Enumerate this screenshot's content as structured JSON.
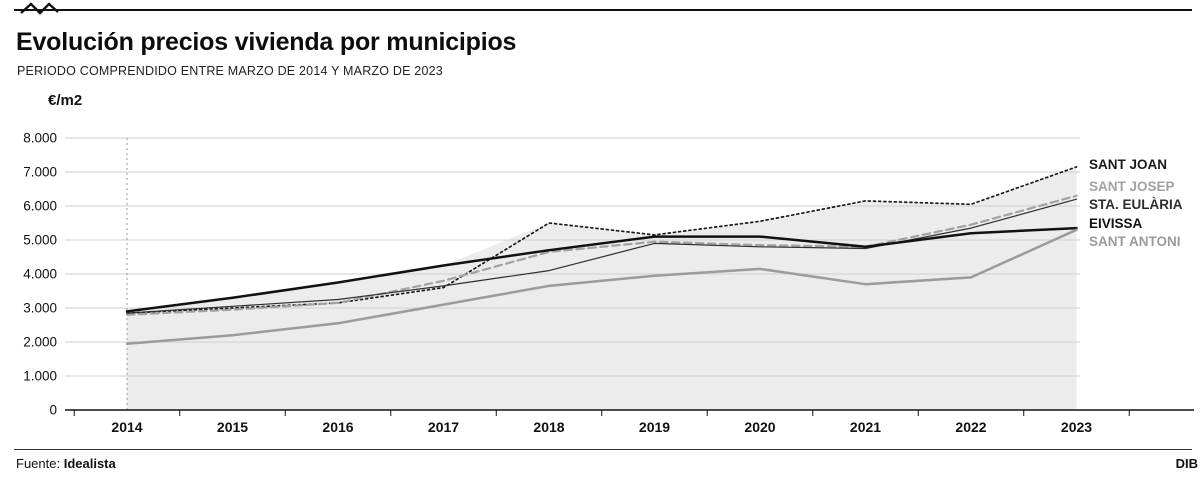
{
  "header": {
    "title": "Evolución precios vivienda por municipios",
    "subtitle": "PERIODO COMPRENDIDO ENTRE MARZO DE 2014 Y MARZO DE 2023"
  },
  "footer": {
    "source_label": "Fuente:",
    "source_value": "Idealista",
    "credit": "DIB"
  },
  "chart_data": {
    "type": "line",
    "title": "Evolución precios vivienda por municipios",
    "subtitle": "PERIODO COMPRENDIDO ENTRE MARZO DE 2014 Y MARZO DE 2023",
    "unit_label": "€/m2",
    "xlabel": "",
    "ylabel": "€/m2",
    "ylim": [
      0,
      8000
    ],
    "y_ticks": [
      "0",
      "1.000",
      "2.000",
      "3.000",
      "4.000",
      "5.000",
      "6.000",
      "7.000",
      "8.000"
    ],
    "grid": true,
    "legend_position": "right-edge-labels",
    "area_fill": "#ececec",
    "categories": [
      "2014",
      "2015",
      "2016",
      "2017",
      "2018",
      "2019",
      "2020",
      "2021",
      "2022",
      "2023"
    ],
    "series": [
      {
        "name": "SANT JOAN",
        "values": [
          2850,
          3000,
          3150,
          3600,
          5500,
          5150,
          5550,
          6150,
          6050,
          7150
        ],
        "color": "#1a1a1a",
        "dash": "dotted",
        "width": 1.7,
        "label_dy": -2
      },
      {
        "name": "SANT JOSEP",
        "values": [
          2800,
          2950,
          3150,
          3800,
          4650,
          4950,
          4850,
          4800,
          5450,
          6300
        ],
        "color": "#a2a2a2",
        "dash": "dashed",
        "width": 2.2,
        "label_dy": -9
      },
      {
        "name": "STA. EULÀRIA",
        "values": [
          2850,
          3050,
          3250,
          3650,
          4100,
          4900,
          4800,
          4750,
          5350,
          6200
        ],
        "color": "#2e2e2e",
        "dash": "solid",
        "width": 1.2,
        "label_dy": 6
      },
      {
        "name": "EIVISSA",
        "values": [
          2900,
          3300,
          3750,
          4250,
          4700,
          5100,
          5100,
          4800,
          5200,
          5350
        ],
        "color": "#111111",
        "dash": "solid",
        "width": 2.5,
        "label_dy": -4
      },
      {
        "name": "SANT ANTONI",
        "values": [
          1950,
          2200,
          2550,
          3100,
          3650,
          3950,
          4150,
          3700,
          3900,
          5300
        ],
        "color": "#9b9b9b",
        "dash": "solid",
        "width": 2.5,
        "label_dy": 12
      }
    ]
  }
}
